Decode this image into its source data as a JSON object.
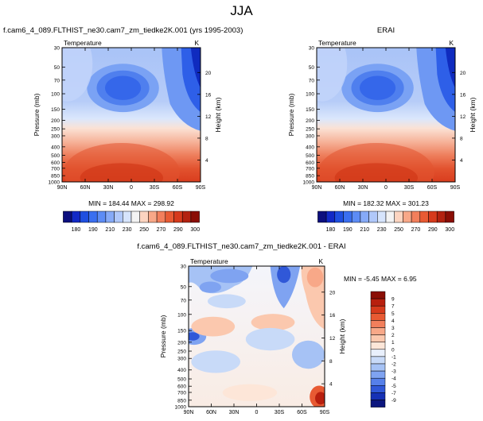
{
  "page_title": "JJA",
  "chart_data": [
    {
      "type": "heatmap",
      "title": "f.cam6_4_089.FLTHIST_ne30.cam7_zm_tiedke2K.001 (yrs 1995-2003)",
      "left_title": "Temperature",
      "right_title": "K",
      "xlabel": "",
      "ylabel": "Pressure (mb)",
      "ylabel_right": "Height (km)",
      "x_ticks": [
        "90N",
        "60N",
        "30N",
        "0",
        "30S",
        "60S",
        "90S"
      ],
      "y_ticks": [
        "30",
        "50",
        "70",
        "100",
        "150",
        "200",
        "250",
        "300",
        "400",
        "500",
        "600",
        "700",
        "850",
        "1000"
      ],
      "y_ticks_right": [
        "20",
        "16",
        "12",
        "8",
        "4"
      ],
      "stats": "MIN = 184.44   MAX = 298.92",
      "colorbar": {
        "orientation": "horizontal",
        "labels": [
          "180",
          "190",
          "210",
          "230",
          "250",
          "270",
          "290",
          "300"
        ],
        "colors": [
          "#0c0f7e",
          "#1229c6",
          "#1f4fe0",
          "#3a6ff0",
          "#5d8cf5",
          "#86aaf7",
          "#b0c8fa",
          "#d6e4fc",
          "#f3f3f3",
          "#fcd4c0",
          "#f8a888",
          "#f27f5c",
          "#e85a33",
          "#d63a1c",
          "#b32210",
          "#8a0e05"
        ]
      }
    },
    {
      "type": "heatmap",
      "title": "ERAI",
      "left_title": "Temperature",
      "right_title": "K",
      "xlabel": "",
      "ylabel": "Pressure (mb)",
      "ylabel_right": "Height (km)",
      "x_ticks": [
        "90N",
        "60N",
        "30N",
        "0",
        "30S",
        "60S",
        "90S"
      ],
      "y_ticks": [
        "30",
        "50",
        "70",
        "100",
        "150",
        "200",
        "250",
        "300",
        "400",
        "500",
        "600",
        "700",
        "850",
        "1000"
      ],
      "y_ticks_right": [
        "20",
        "16",
        "12",
        "8",
        "4"
      ],
      "stats": "MIN = 182.32   MAX = 301.23",
      "colorbar": {
        "orientation": "horizontal",
        "labels": [
          "180",
          "190",
          "210",
          "230",
          "250",
          "270",
          "290",
          "300"
        ],
        "colors": [
          "#0c0f7e",
          "#1229c6",
          "#1f4fe0",
          "#3a6ff0",
          "#5d8cf5",
          "#86aaf7",
          "#b0c8fa",
          "#d6e4fc",
          "#f3f3f3",
          "#fcd4c0",
          "#f8a888",
          "#f27f5c",
          "#e85a33",
          "#d63a1c",
          "#b32210",
          "#8a0e05"
        ]
      }
    },
    {
      "type": "heatmap",
      "title": "f.cam6_4_089.FLTHIST_ne30.cam7_zm_tiedke2K.001 - ERAI",
      "left_title": "Temperature",
      "right_title": "K",
      "xlabel": "",
      "ylabel": "Pressure (mb)",
      "ylabel_right": "Height (km)",
      "x_ticks": [
        "90N",
        "60N",
        "30N",
        "0",
        "30S",
        "60S",
        "90S"
      ],
      "y_ticks": [
        "30",
        "50",
        "70",
        "100",
        "150",
        "200",
        "250",
        "300",
        "400",
        "500",
        "600",
        "700",
        "850",
        "1000"
      ],
      "y_ticks_right": [
        "20",
        "16",
        "12",
        "8",
        "4"
      ],
      "stats": "MIN =  -5.45   MAX =   6.95",
      "colorbar": {
        "orientation": "vertical",
        "labels": [
          "9",
          "7",
          "5",
          "4",
          "3",
          "2",
          "1",
          "0",
          "-1",
          "-2",
          "-3",
          "-4",
          "-5",
          "-7",
          "-9"
        ],
        "colors": [
          "#8a0e05",
          "#b81f0e",
          "#d63a1c",
          "#e85a33",
          "#f27f5c",
          "#f8a888",
          "#fbc8ae",
          "#fde6d8",
          "#e9f0fc",
          "#c8daf8",
          "#a6c2f5",
          "#7fa3f1",
          "#5680ea",
          "#3058d8",
          "#1631b5",
          "#0c167e"
        ]
      }
    }
  ]
}
